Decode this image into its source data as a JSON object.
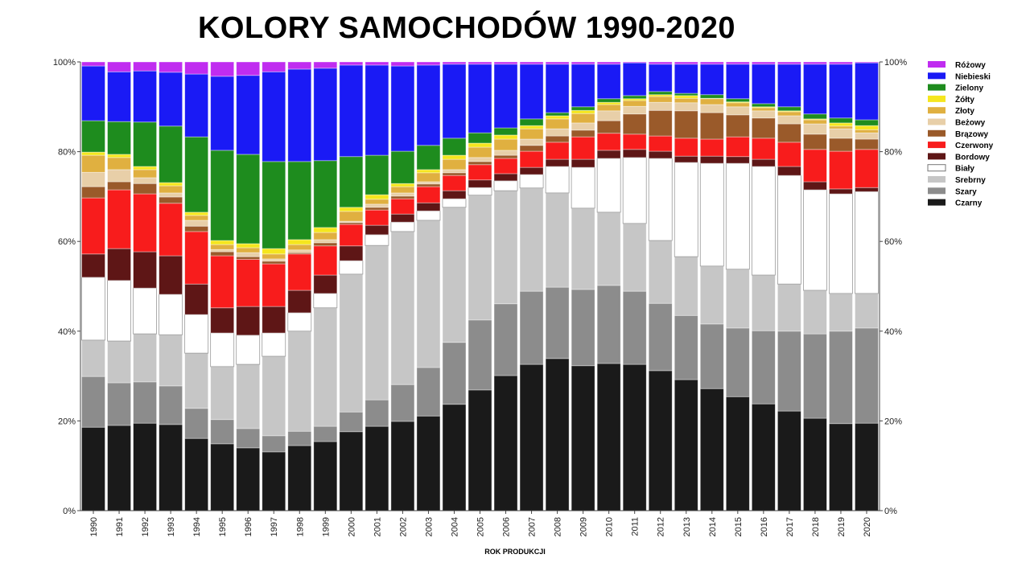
{
  "chart_data": {
    "type": "bar",
    "stacked": true,
    "normalized": true,
    "title": "KOLORY SAMOCHODÓW 1990-2020",
    "xlabel": "ROK PRODUKCJI",
    "ylabel": "",
    "ylim": [
      0,
      100
    ],
    "yticks": [
      "0%",
      "20%",
      "40%",
      "60%",
      "80%",
      "100%"
    ],
    "grid": false,
    "legend_position": "right",
    "categories": [
      "1990",
      "1991",
      "1992",
      "1993",
      "1994",
      "1995",
      "1996",
      "1997",
      "1998",
      "1999",
      "2000",
      "2001",
      "2002",
      "2003",
      "2004",
      "2005",
      "2006",
      "2007",
      "2008",
      "2009",
      "2010",
      "2011",
      "2012",
      "2013",
      "2014",
      "2015",
      "2016",
      "2017",
      "2018",
      "2019",
      "2020"
    ],
    "series": [
      {
        "name": "Czarny",
        "color": "#1a1a1a",
        "values": [
          18.6,
          19.0,
          19.5,
          19.2,
          16.1,
          14.9,
          14.0,
          13.1,
          14.5,
          15.4,
          17.6,
          18.8,
          19.9,
          21.1,
          23.7,
          26.9,
          30.1,
          32.6,
          33.9,
          32.3,
          32.8,
          32.6,
          31.2,
          29.2,
          27.2,
          25.4,
          23.8,
          22.2,
          20.6,
          19.4,
          19.5
        ]
      },
      {
        "name": "Szary",
        "color": "#8c8c8c",
        "values": [
          11.3,
          9.5,
          9.2,
          8.6,
          6.7,
          5.4,
          4.3,
          3.6,
          3.2,
          3.4,
          4.4,
          5.9,
          8.2,
          10.8,
          13.8,
          15.6,
          16.0,
          16.3,
          15.9,
          17.0,
          17.4,
          16.3,
          15.0,
          14.3,
          14.4,
          15.3,
          16.3,
          17.8,
          18.8,
          20.6,
          21.2
        ]
      },
      {
        "name": "Srebrny",
        "color": "#c6c6c6",
        "values": [
          8.1,
          9.3,
          10.7,
          11.4,
          12.3,
          11.8,
          14.3,
          17.7,
          22.3,
          26.4,
          30.7,
          34.4,
          34.1,
          32.8,
          30.1,
          27.8,
          25.2,
          23.0,
          21.0,
          18.1,
          16.3,
          15.1,
          14.0,
          13.1,
          12.9,
          13.1,
          12.4,
          10.5,
          9.7,
          8.4,
          7.7
        ]
      },
      {
        "name": "Biały",
        "color": "#ffffff",
        "values": [
          14.0,
          13.5,
          10.2,
          9.0,
          8.6,
          7.5,
          6.5,
          5.2,
          4.1,
          3.2,
          3.0,
          2.4,
          2.1,
          2.1,
          1.9,
          1.7,
          2.2,
          3.0,
          5.9,
          9.1,
          12.0,
          14.7,
          18.3,
          21.0,
          22.9,
          23.6,
          24.2,
          24.2,
          22.4,
          22.2,
          22.7
        ]
      },
      {
        "name": "Bordowy",
        "color": "#5e1616",
        "values": [
          5.2,
          7.1,
          8.1,
          8.6,
          6.8,
          5.6,
          6.4,
          5.9,
          5.0,
          4.1,
          3.3,
          2.1,
          1.8,
          1.8,
          1.8,
          1.7,
          1.6,
          1.6,
          1.6,
          1.8,
          1.8,
          1.8,
          1.6,
          1.4,
          1.6,
          1.5,
          1.6,
          2.0,
          1.8,
          1.1,
          0.9
        ]
      },
      {
        "name": "Czerwony",
        "color": "#f81c1c",
        "values": [
          12.5,
          13.1,
          12.9,
          11.7,
          11.7,
          11.6,
          10.5,
          9.5,
          8.1,
          6.5,
          4.8,
          3.4,
          3.4,
          3.6,
          3.4,
          3.4,
          3.4,
          3.6,
          3.8,
          5.0,
          3.8,
          3.4,
          3.4,
          4.0,
          3.8,
          4.4,
          4.7,
          5.4,
          7.2,
          8.4,
          8.5
        ]
      },
      {
        "name": "Brązowy",
        "color": "#9a5a2a",
        "values": [
          2.5,
          1.8,
          2.3,
          1.4,
          1.2,
          0.9,
          0.6,
          0.6,
          0.3,
          0.7,
          0.4,
          0.6,
          0.6,
          0.6,
          0.6,
          0.7,
          0.7,
          1.3,
          1.4,
          1.5,
          2.8,
          4.5,
          5.7,
          6.1,
          5.9,
          4.9,
          4.5,
          4.1,
          3.4,
          2.9,
          2.3
        ]
      },
      {
        "name": "Beżowy",
        "color": "#e8cfa8",
        "values": [
          3.2,
          2.7,
          1.3,
          0.9,
          1.3,
          0.5,
          0.9,
          0.5,
          0.6,
          0.7,
          0.3,
          0.7,
          0.7,
          0.5,
          0.7,
          0.9,
          1.1,
          1.4,
          1.6,
          1.6,
          2.2,
          1.7,
          1.8,
          1.8,
          1.8,
          1.8,
          1.6,
          1.8,
          2.3,
          2.1,
          1.4
        ]
      },
      {
        "name": "Złoty",
        "color": "#e0b040",
        "values": [
          3.8,
          2.7,
          1.8,
          1.6,
          1.1,
          1.1,
          1.1,
          1.1,
          1.2,
          1.6,
          2.2,
          1.1,
          1.4,
          2.0,
          2.3,
          2.3,
          2.5,
          2.3,
          2.2,
          2.1,
          1.4,
          1.3,
          1.3,
          1.0,
          1.3,
          0.9,
          0.7,
          0.9,
          0.9,
          0.6,
          0.7
        ]
      },
      {
        "name": "Żółty",
        "color": "#f5e61e",
        "values": [
          0.7,
          0.7,
          0.7,
          0.7,
          0.7,
          0.9,
          0.9,
          1.2,
          1.1,
          1.1,
          0.9,
          1.0,
          0.7,
          0.7,
          0.9,
          0.9,
          0.9,
          0.7,
          0.7,
          0.7,
          0.5,
          0.4,
          0.4,
          0.6,
          0.1,
          0.2,
          0.2,
          0.2,
          0.2,
          0.7,
          0.9
        ]
      },
      {
        "name": "Zielony",
        "color": "#1e8c1e",
        "values": [
          7.0,
          7.3,
          9.9,
          12.6,
          16.8,
          20.1,
          19.9,
          19.4,
          17.4,
          14.9,
          11.3,
          8.8,
          7.2,
          5.4,
          3.8,
          2.3,
          1.6,
          1.5,
          0.7,
          0.8,
          0.8,
          0.7,
          0.7,
          0.5,
          0.8,
          0.7,
          0.7,
          0.9,
          1.1,
          1.1,
          1.3
        ]
      },
      {
        "name": "Niebieski",
        "color": "#1a1af5",
        "values": [
          12.2,
          11.1,
          11.4,
          12.0,
          14.0,
          16.5,
          17.6,
          20.0,
          20.6,
          20.6,
          20.4,
          20.1,
          19.0,
          17.9,
          16.5,
          15.3,
          14.2,
          12.2,
          10.8,
          9.5,
          7.7,
          7.3,
          6.1,
          6.5,
          6.8,
          7.7,
          8.8,
          9.5,
          11.1,
          12.0,
          12.7
        ]
      },
      {
        "name": "Różowy",
        "color": "#c02cf0",
        "values": [
          0.9,
          2.2,
          2.0,
          2.3,
          2.7,
          3.2,
          3.0,
          2.2,
          1.6,
          1.4,
          0.7,
          0.7,
          0.9,
          0.7,
          0.5,
          0.5,
          0.5,
          0.5,
          0.5,
          0.5,
          0.5,
          0.2,
          0.5,
          0.5,
          0.5,
          0.5,
          0.5,
          0.5,
          0.5,
          0.5,
          0.2
        ]
      }
    ]
  }
}
